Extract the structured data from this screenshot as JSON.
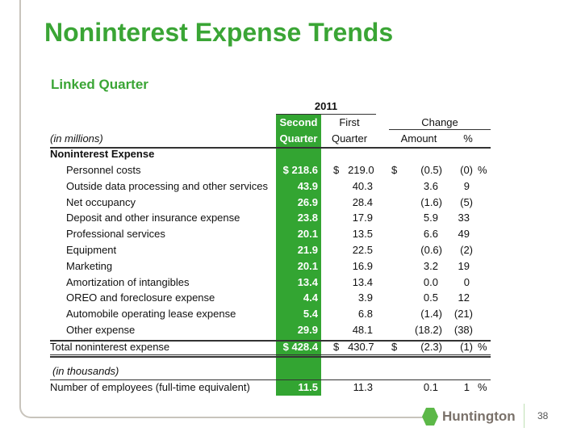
{
  "title": "Noninterest Expense Trends",
  "subtitle": "Linked Quarter",
  "header": {
    "year": "2011",
    "col1a": "Second",
    "col1b": "Quarter",
    "col2a": "First",
    "col2b": "Quarter",
    "change": "Change",
    "amount": "Amount",
    "pct": "%",
    "units": "(in millions)"
  },
  "section": "Noninterest Expense",
  "rows": [
    {
      "label": "Personnel costs",
      "q2": "$ 218.6",
      "q1": "$   219.0",
      "amt_sign": "$",
      "amt": "(0.5)",
      "pct": "(0)",
      "pct_sign": "%"
    },
    {
      "label": "Outside data processing and other services",
      "q2": "43.9",
      "q1": "40.3",
      "amt": "3.6",
      "pct": "9"
    },
    {
      "label": "Net occupancy",
      "q2": "26.9",
      "q1": "28.4",
      "amt": "(1.6)",
      "pct": "(5)"
    },
    {
      "label": "Deposit and other insurance expense",
      "q2": "23.8",
      "q1": "17.9",
      "amt": "5.9",
      "pct": "33"
    },
    {
      "label": "Professional services",
      "q2": "20.1",
      "q1": "13.5",
      "amt": "6.6",
      "pct": "49"
    },
    {
      "label": "Equipment",
      "q2": "21.9",
      "q1": "22.5",
      "amt": "(0.6)",
      "pct": "(2)"
    },
    {
      "label": "Marketing",
      "q2": "20.1",
      "q1": "16.9",
      "amt": "3.2",
      "pct": "19"
    },
    {
      "label": "Amortization of intangibles",
      "q2": "13.4",
      "q1": "13.4",
      "amt": "0.0",
      "pct": "0"
    },
    {
      "label": "OREO and foreclosure expense",
      "q2": "4.4",
      "q1": "3.9",
      "amt": "0.5",
      "pct": "12"
    },
    {
      "label": "Automobile operating lease expense",
      "q2": "5.4",
      "q1": "6.8",
      "amt": "(1.4)",
      "pct": "(21)"
    },
    {
      "label": "Other expense",
      "q2": "29.9",
      "q1": "48.1",
      "amt": "(18.2)",
      "pct": "(38)"
    }
  ],
  "total": {
    "label": "Total noninterest expense",
    "q2": "$ 428.4",
    "q1": "$   430.7",
    "amt_sign": "$",
    "amt": "(2.3)",
    "pct": "(1)",
    "pct_sign": "%"
  },
  "units2": "(in thousands)",
  "employees": {
    "label": "Number of employees (full-time equivalent)",
    "q2": "11.5",
    "q1": "11.3",
    "amt": "0.1",
    "pct": "1",
    "pct_sign": "%"
  },
  "logo": "Huntington",
  "page": "38"
}
